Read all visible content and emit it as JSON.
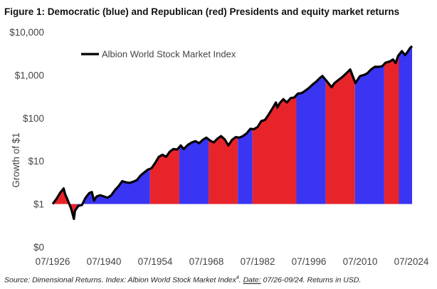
{
  "figure_title": "Figure 1: Democratic (blue) and Republican (red) Presidents and equity market returns",
  "source": {
    "prefix": "Source: Dimensional Returns. Index: Albion World Stock Market Index",
    "superscript": "4",
    "date_label": "Date:",
    "date_text": " 07/26-09/24. Returns in USD."
  },
  "colors": {
    "democratic": "#3a35f2",
    "republican": "#e8242b",
    "index_line": "#000000"
  },
  "chart_data": {
    "type": "area",
    "title": "Figure 1: Democratic (blue) and Republican (red) Presidents and equity market returns",
    "ylabel": "Growth of $1",
    "y_scale": "log",
    "y_ticks": [
      {
        "value": 0.1,
        "label": "$0"
      },
      {
        "value": 1,
        "label": "$1"
      },
      {
        "value": 10,
        "label": "$10"
      },
      {
        "value": 100,
        "label": "$100"
      },
      {
        "value": 1000,
        "label": "$1,000"
      },
      {
        "value": 10000,
        "label": "$10,000"
      }
    ],
    "x_ticks": [
      {
        "value": 1926.5,
        "label": "07/1926"
      },
      {
        "value": 1940.5,
        "label": "07/1940"
      },
      {
        "value": 1954.5,
        "label": "07/1954"
      },
      {
        "value": 1968.5,
        "label": "07/1968"
      },
      {
        "value": 1982.5,
        "label": "07/1982"
      },
      {
        "value": 1996.5,
        "label": "07/1996"
      },
      {
        "value": 2010.5,
        "label": "07/2010"
      },
      {
        "value": 2024.5,
        "label": "07/2024"
      }
    ],
    "xlim": [
      1926.5,
      2024.7
    ],
    "ylim": [
      0.1,
      10000
    ],
    "legend": {
      "entries": [
        "Albion World Stock Market Index"
      ],
      "placement": "top-left"
    },
    "grid": false,
    "series": [
      {
        "name": "Albion World Stock Market Index",
        "points": [
          [
            1926.5,
            1.0
          ],
          [
            1927.5,
            1.3
          ],
          [
            1928.5,
            1.8
          ],
          [
            1929.5,
            2.3
          ],
          [
            1929.9,
            1.7
          ],
          [
            1930.5,
            1.3
          ],
          [
            1931.5,
            0.8
          ],
          [
            1932.3,
            0.45
          ],
          [
            1932.6,
            0.7
          ],
          [
            1933.5,
            0.9
          ],
          [
            1934.5,
            0.95
          ],
          [
            1935.5,
            1.4
          ],
          [
            1936.5,
            1.8
          ],
          [
            1937.2,
            1.9
          ],
          [
            1937.8,
            1.2
          ],
          [
            1938.5,
            1.5
          ],
          [
            1939.5,
            1.6
          ],
          [
            1940.5,
            1.5
          ],
          [
            1941.5,
            1.4
          ],
          [
            1942.5,
            1.6
          ],
          [
            1943.5,
            2.1
          ],
          [
            1944.5,
            2.6
          ],
          [
            1945.5,
            3.4
          ],
          [
            1946.5,
            3.2
          ],
          [
            1947.5,
            3.1
          ],
          [
            1948.5,
            3.3
          ],
          [
            1949.5,
            3.6
          ],
          [
            1950.5,
            4.6
          ],
          [
            1951.5,
            5.4
          ],
          [
            1952.5,
            6.3
          ],
          [
            1953.5,
            6.8
          ],
          [
            1954.5,
            9.0
          ],
          [
            1955.5,
            12.5
          ],
          [
            1956.5,
            14.0
          ],
          [
            1957.5,
            12.5
          ],
          [
            1958.5,
            16.5
          ],
          [
            1959.5,
            19.0
          ],
          [
            1960.5,
            18.5
          ],
          [
            1961.5,
            23.0
          ],
          [
            1962.3,
            19.0
          ],
          [
            1963.5,
            24.0
          ],
          [
            1964.5,
            27.0
          ],
          [
            1965.5,
            29.0
          ],
          [
            1966.5,
            26.0
          ],
          [
            1967.5,
            31.0
          ],
          [
            1968.5,
            35.0
          ],
          [
            1969.5,
            30.0
          ],
          [
            1970.5,
            27.0
          ],
          [
            1971.5,
            33.0
          ],
          [
            1972.5,
            38.0
          ],
          [
            1973.5,
            32.0
          ],
          [
            1974.5,
            23.0
          ],
          [
            1975.5,
            31.0
          ],
          [
            1976.5,
            36.0
          ],
          [
            1977.5,
            35.0
          ],
          [
            1978.5,
            38.0
          ],
          [
            1979.5,
            44.0
          ],
          [
            1980.5,
            56.0
          ],
          [
            1981.5,
            55.0
          ],
          [
            1982.5,
            62.0
          ],
          [
            1983.5,
            85.0
          ],
          [
            1984.5,
            90.0
          ],
          [
            1985.5,
            120.0
          ],
          [
            1986.5,
            165.0
          ],
          [
            1987.5,
            230.0
          ],
          [
            1987.9,
            175.0
          ],
          [
            1988.5,
            220.0
          ],
          [
            1989.5,
            275.0
          ],
          [
            1990.5,
            230.0
          ],
          [
            1991.5,
            290.0
          ],
          [
            1992.5,
            300.0
          ],
          [
            1993.5,
            370.0
          ],
          [
            1994.5,
            380.0
          ],
          [
            1995.5,
            430.0
          ],
          [
            1996.5,
            500.0
          ],
          [
            1997.5,
            600.0
          ],
          [
            1998.5,
            700.0
          ],
          [
            1999.5,
            850.0
          ],
          [
            2000.2,
            950.0
          ],
          [
            2001.5,
            700.0
          ],
          [
            2002.7,
            520.0
          ],
          [
            2003.5,
            650.0
          ],
          [
            2004.5,
            760.0
          ],
          [
            2005.5,
            880.0
          ],
          [
            2006.5,
            1050.0
          ],
          [
            2007.8,
            1350.0
          ],
          [
            2009.2,
            650.0
          ],
          [
            2010.5,
            950.0
          ],
          [
            2011.5,
            1000.0
          ],
          [
            2012.5,
            1100.0
          ],
          [
            2013.5,
            1350.0
          ],
          [
            2014.5,
            1550.0
          ],
          [
            2015.5,
            1550.0
          ],
          [
            2016.5,
            1600.0
          ],
          [
            2017.5,
            1950.0
          ],
          [
            2018.5,
            2050.0
          ],
          [
            2019.5,
            2300.0
          ],
          [
            2020.2,
            1900.0
          ],
          [
            2020.9,
            2800.0
          ],
          [
            2021.9,
            3600.0
          ],
          [
            2022.8,
            2900.0
          ],
          [
            2023.5,
            3500.0
          ],
          [
            2024.2,
            4300.0
          ],
          [
            2024.7,
            4700.0
          ]
        ]
      }
    ],
    "presidential_terms": [
      {
        "party": "Republican",
        "start": 1926.5,
        "end": 1933.2
      },
      {
        "party": "Democratic",
        "start": 1933.2,
        "end": 1953.1
      },
      {
        "party": "Republican",
        "start": 1953.1,
        "end": 1961.1
      },
      {
        "party": "Democratic",
        "start": 1961.1,
        "end": 1969.1
      },
      {
        "party": "Republican",
        "start": 1969.1,
        "end": 1977.1
      },
      {
        "party": "Democratic",
        "start": 1977.1,
        "end": 1981.1
      },
      {
        "party": "Republican",
        "start": 1981.1,
        "end": 1993.1
      },
      {
        "party": "Democratic",
        "start": 1993.1,
        "end": 2001.1
      },
      {
        "party": "Republican",
        "start": 2001.1,
        "end": 2009.1
      },
      {
        "party": "Democratic",
        "start": 2009.1,
        "end": 2017.1
      },
      {
        "party": "Republican",
        "start": 2017.1,
        "end": 2021.1
      },
      {
        "party": "Democratic",
        "start": 2021.1,
        "end": 2024.7
      }
    ]
  }
}
